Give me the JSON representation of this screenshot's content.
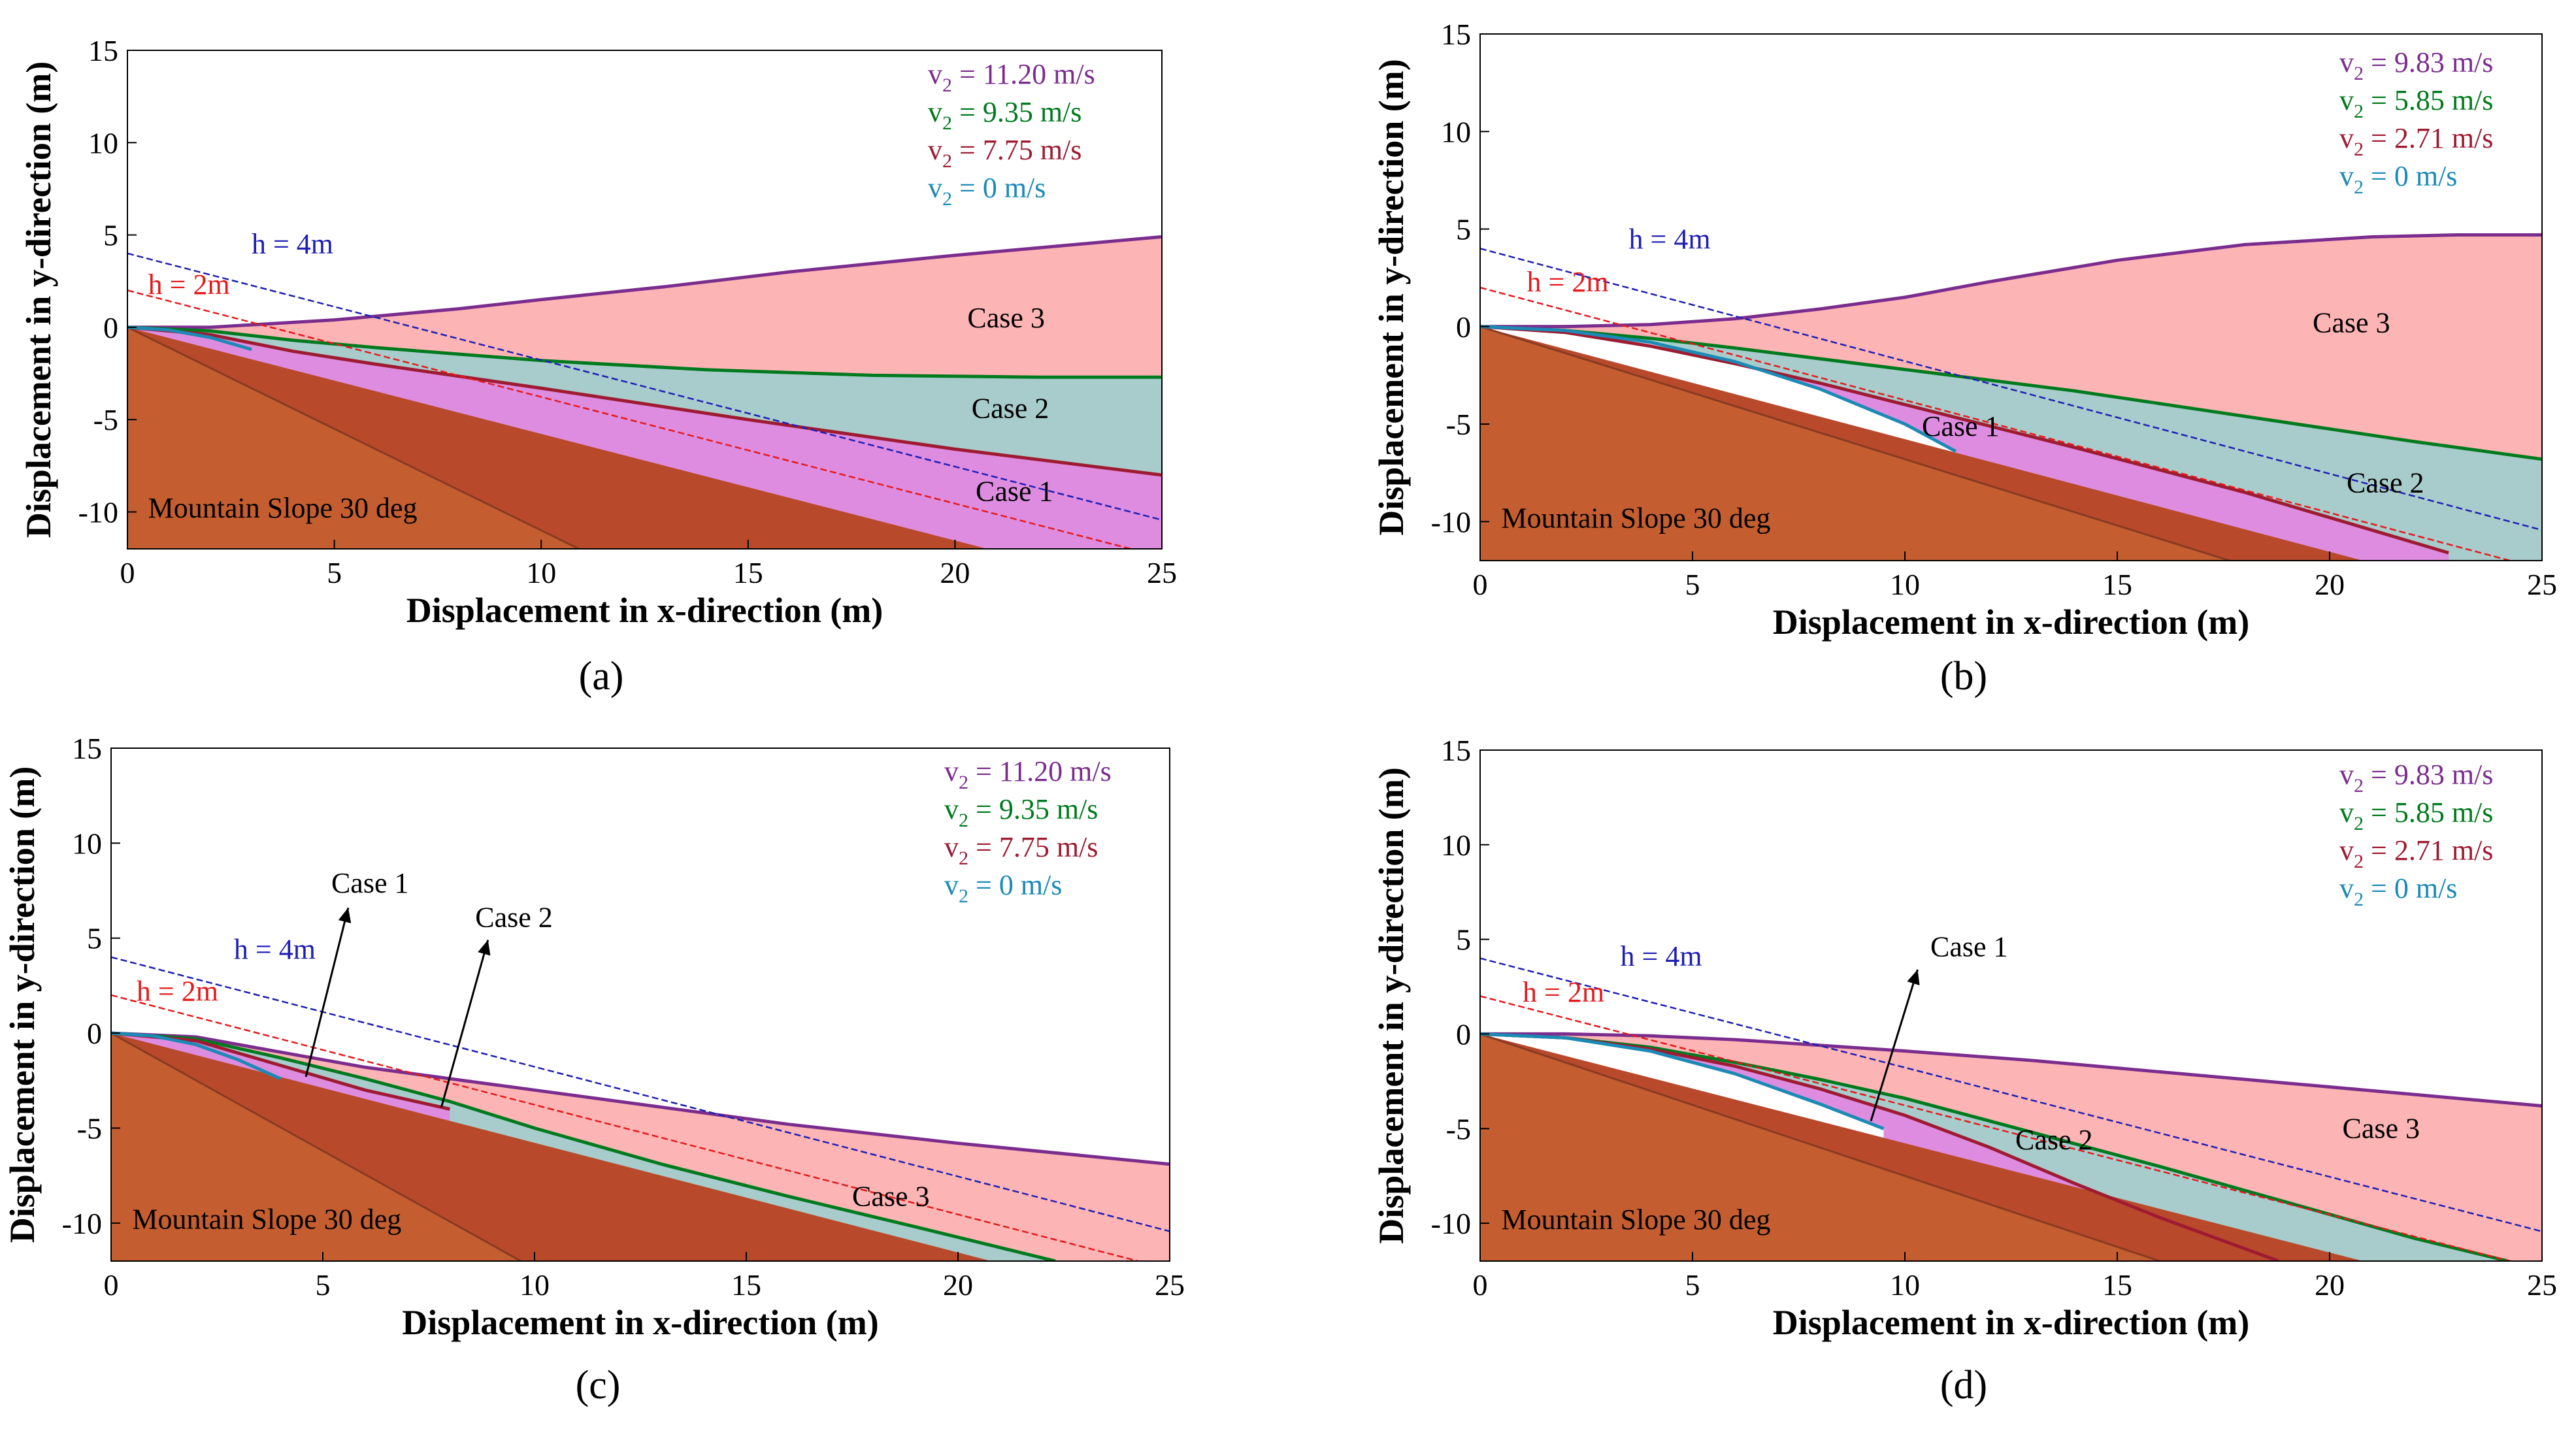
{
  "chart_data": [
    {
      "type": "area",
      "panel": "a",
      "panel_label": "a",
      "xlabel": "Displacement in x-direction (m)",
      "ylabel": "Displacement in y-direction (m)",
      "xlim": [
        0,
        25
      ],
      "ylim": [
        -12,
        15
      ],
      "xticks": [
        "0",
        "5",
        "10",
        "15",
        "20",
        "25"
      ],
      "yticks": [
        "15",
        "10",
        "5",
        "0",
        "-5",
        "-10"
      ],
      "slope_label": "Mountain Slope 30 deg",
      "slope_deg": 30,
      "steep_line_slope": -1.1,
      "h_lines": [
        {
          "label": "h = 4m",
          "intercept": 4,
          "color": "#1f1fb4"
        },
        {
          "label": "h = 2m",
          "intercept": 2,
          "color": "#e41a1c"
        }
      ],
      "legend": [
        {
          "prefix": "v",
          "sub": "2",
          "text": " = 11.20 m/s",
          "color": "#7b2d8e"
        },
        {
          "prefix": "v",
          "sub": "2",
          "text": " = 9.35 m/s",
          "color": "#007a1e"
        },
        {
          "prefix": "v",
          "sub": "2",
          "text": " = 7.75 m/s",
          "color": "#9e1b32"
        },
        {
          "prefix": "v",
          "sub": "2",
          "text": " = 0 m/s",
          "color": "#1b8ab5"
        }
      ],
      "series": [
        {
          "name": "v2 = 11.20 m/s",
          "color": "#7b2d8e",
          "fill": "#fdb4b4",
          "x": [
            0,
            2,
            5,
            8,
            10,
            13,
            16,
            20,
            25
          ],
          "y": [
            0,
            0,
            0.4,
            1.0,
            1.5,
            2.2,
            3.0,
            3.9,
            4.9
          ]
        },
        {
          "name": "v2 = 9.35 m/s",
          "color": "#007a1e",
          "fill": "#a8cccb",
          "x": [
            0,
            2,
            4,
            6,
            10,
            14,
            18,
            22,
            25
          ],
          "y": [
            0,
            -0.2,
            -0.7,
            -1.1,
            -1.8,
            -2.3,
            -2.6,
            -2.7,
            -2.7
          ]
        },
        {
          "name": "v2 = 7.75 m/s",
          "color": "#9e1b32",
          "fill": "#de8ce0",
          "x": [
            0,
            2,
            4,
            6,
            10,
            15,
            20,
            25
          ],
          "y": [
            0,
            -0.4,
            -1.3,
            -2.0,
            -3.3,
            -5.0,
            -6.6,
            -8.0
          ]
        },
        {
          "name": "v2 = 0 m/s",
          "color": "#1b8ab5",
          "fill": "#de8ce0",
          "x": [
            0,
            1,
            2,
            3
          ],
          "y": [
            0,
            -0.15,
            -0.55,
            -1.2
          ]
        }
      ],
      "annotations": [
        {
          "text": "h = 4m",
          "x": 3.0,
          "y": 4.0,
          "color": "#1f1fb4"
        },
        {
          "text": "h = 2m",
          "x": 0.5,
          "y": 1.8,
          "color": "#e41a1c"
        },
        {
          "text": "Case 3",
          "x": 20.3,
          "y": 0.0,
          "color": "#000000"
        },
        {
          "text": "Case 2",
          "x": 20.4,
          "y": -4.9,
          "color": "#000000"
        },
        {
          "text": "Case 1",
          "x": 20.5,
          "y": -9.4,
          "color": "#000000"
        }
      ]
    },
    {
      "type": "area",
      "panel": "b",
      "panel_label": "b",
      "xlabel": "Displacement in x-direction (m)",
      "ylabel": "Displacement in y-direction (m)",
      "xlim": [
        0,
        25
      ],
      "ylim": [
        -12,
        15
      ],
      "xticks": [
        "0",
        "5",
        "10",
        "15",
        "20",
        "25"
      ],
      "yticks": [
        "15",
        "10",
        "5",
        "0",
        "-5",
        "-10"
      ],
      "slope_label": "Mountain Slope 30 deg",
      "slope_deg": 30,
      "steep_line_slope": -0.68,
      "h_lines": [
        {
          "label": "h = 4m",
          "intercept": 4,
          "color": "#1f1fb4"
        },
        {
          "label": "h = 2m",
          "intercept": 2,
          "color": "#e41a1c"
        }
      ],
      "legend": [
        {
          "prefix": "v",
          "sub": "2",
          "text": " = 9.83 m/s",
          "color": "#7b2d8e"
        },
        {
          "prefix": "v",
          "sub": "2",
          "text": " = 5.85 m/s",
          "color": "#007a1e"
        },
        {
          "prefix": "v",
          "sub": "2",
          "text": " = 2.71 m/s",
          "color": "#9e1b32"
        },
        {
          "prefix": "v",
          "sub": "2",
          "text": " = 0 m/s",
          "color": "#1b8ab5"
        }
      ],
      "series": [
        {
          "name": "v2 = 9.83 m/s",
          "color": "#7b2d8e",
          "fill": "#fdb4b4",
          "x": [
            0,
            2,
            4,
            6,
            8,
            10,
            12,
            15,
            18,
            21,
            23,
            25
          ],
          "y": [
            0,
            0,
            0.1,
            0.4,
            0.9,
            1.5,
            2.3,
            3.4,
            4.2,
            4.6,
            4.7,
            4.7
          ]
        },
        {
          "name": "v2 = 5.85 m/s",
          "color": "#007a1e",
          "fill": "#a8cccb",
          "x": [
            0,
            2,
            4,
            6,
            10,
            14,
            18,
            22,
            25
          ],
          "y": [
            0,
            -0.2,
            -0.6,
            -1.1,
            -2.2,
            -3.3,
            -4.6,
            -5.9,
            -6.8
          ]
        },
        {
          "name": "v2 = 2.71 m/s",
          "color": "#9e1b32",
          "fill": "#de8ce0",
          "x": [
            0,
            2,
            4,
            6,
            8,
            10,
            14,
            18,
            22.8
          ],
          "y": [
            0,
            -0.3,
            -1.0,
            -1.9,
            -2.9,
            -4.0,
            -6.2,
            -8.5,
            -11.6
          ]
        },
        {
          "name": "v2 = 0 m/s",
          "color": "#1b8ab5",
          "fill": "#ffffff",
          "x": [
            0,
            2,
            4,
            6,
            8,
            10,
            11.2
          ],
          "y": [
            0,
            -0.2,
            -0.8,
            -1.8,
            -3.2,
            -5.0,
            -6.4
          ]
        }
      ],
      "annotations": [
        {
          "text": "h = 4m",
          "x": 3.5,
          "y": 4.0,
          "color": "#1f1fb4"
        },
        {
          "text": "h = 2m",
          "x": 1.1,
          "y": 1.8,
          "color": "#e41a1c"
        },
        {
          "text": "Case 3",
          "x": 19.6,
          "y": -0.3,
          "color": "#000000"
        },
        {
          "text": "Case 2",
          "x": 20.4,
          "y": -8.5,
          "color": "#000000"
        },
        {
          "text": "Case 1",
          "x": 10.4,
          "y": -5.6,
          "color": "#000000"
        }
      ]
    },
    {
      "type": "area",
      "panel": "c",
      "panel_label": "c",
      "xlabel": "Displacement in x-direction (m)",
      "ylabel": "Displacement in y-direction (m)",
      "xlim": [
        0,
        25
      ],
      "ylim": [
        -12,
        15
      ],
      "xticks": [
        "0",
        "5",
        "10",
        "15",
        "20",
        "25"
      ],
      "yticks": [
        "15",
        "10",
        "5",
        "0",
        "-5",
        "-10"
      ],
      "slope_label": "Mountain Slope 30 deg",
      "slope_deg": 30,
      "steep_line_slope": -1.24,
      "h_lines": [
        {
          "label": "h = 4m",
          "intercept": 4,
          "color": "#1f1fb4"
        },
        {
          "label": "h = 2m",
          "intercept": 2,
          "color": "#e41a1c"
        }
      ],
      "legend": [
        {
          "prefix": "v",
          "sub": "2",
          "text": " = 11.20 m/s",
          "color": "#7b2d8e"
        },
        {
          "prefix": "v",
          "sub": "2",
          "text": " = 9.35 m/s",
          "color": "#007a1e"
        },
        {
          "prefix": "v",
          "sub": "2",
          "text": " = 7.75 m/s",
          "color": "#9e1b32"
        },
        {
          "prefix": "v",
          "sub": "2",
          "text": " = 0 m/s",
          "color": "#1b8ab5"
        }
      ],
      "series": [
        {
          "name": "v2 = 11.20 m/s",
          "color": "#7b2d8e",
          "fill": "#fdb4b4",
          "x": [
            0,
            2,
            4,
            6,
            8,
            10,
            13,
            16,
            20,
            25
          ],
          "y": [
            0,
            -0.2,
            -1.0,
            -1.8,
            -2.4,
            -3.0,
            -3.9,
            -4.8,
            -5.8,
            -6.9
          ]
        },
        {
          "name": "v2 = 9.35 m/s",
          "color": "#007a1e",
          "fill": "#a8cccb",
          "x": [
            0,
            2,
            4,
            6,
            8,
            10,
            13,
            16,
            19,
            22.3
          ],
          "y": [
            0,
            -0.3,
            -1.3,
            -2.4,
            -3.6,
            -5.0,
            -6.9,
            -8.6,
            -10.2,
            -12
          ]
        },
        {
          "name": "v2 = 7.75 m/s",
          "color": "#9e1b32",
          "fill": "#de8ce0",
          "x": [
            0,
            2,
            4,
            6,
            8
          ],
          "y": [
            0,
            -0.4,
            -1.7,
            -3.0,
            -4.0
          ]
        },
        {
          "name": "v2 = 0 m/s",
          "color": "#1b8ab5",
          "fill": "#de8ce0",
          "x": [
            0,
            1,
            2,
            3,
            4
          ],
          "y": [
            0,
            -0.15,
            -0.6,
            -1.4,
            -2.4
          ]
        }
      ],
      "annotations": [
        {
          "text": "h = 4m",
          "x": 2.9,
          "y": 3.9,
          "color": "#1f1fb4"
        },
        {
          "text": "h = 2m",
          "x": 0.6,
          "y": 1.7,
          "color": "#e41a1c"
        },
        {
          "text": "Case 1",
          "x": 5.2,
          "y": 7.4,
          "color": "#000000"
        },
        {
          "text": "Case 2",
          "x": 8.6,
          "y": 5.6,
          "color": "#000000"
        },
        {
          "text": "Case 3",
          "x": 17.5,
          "y": -9.1,
          "color": "#000000"
        }
      ],
      "arrows": [
        {
          "from": [
            4.6,
            -2.3
          ],
          "to": [
            5.6,
            6.6
          ]
        },
        {
          "from": [
            7.8,
            -3.9
          ],
          "to": [
            8.9,
            4.9
          ]
        }
      ]
    },
    {
      "type": "area",
      "panel": "d",
      "panel_label": "d",
      "xlabel": "Displacement in x-direction (m)",
      "ylabel": "Displacement in y-direction (m)",
      "xlim": [
        0,
        25
      ],
      "ylim": [
        -12,
        15
      ],
      "xticks": [
        "0",
        "5",
        "10",
        "15",
        "20",
        "25"
      ],
      "yticks": [
        "15",
        "10",
        "5",
        "0",
        "-5",
        "-10"
      ],
      "slope_label": "Mountain Slope 30 deg",
      "slope_deg": 30,
      "steep_line_slope": -0.75,
      "h_lines": [
        {
          "label": "h = 4m",
          "intercept": 4,
          "color": "#1f1fb4"
        },
        {
          "label": "h = 2m",
          "intercept": 2,
          "color": "#e41a1c"
        }
      ],
      "legend": [
        {
          "prefix": "v",
          "sub": "2",
          "text": " = 9.83 m/s",
          "color": "#7b2d8e"
        },
        {
          "prefix": "v",
          "sub": "2",
          "text": " = 5.85 m/s",
          "color": "#007a1e"
        },
        {
          "prefix": "v",
          "sub": "2",
          "text": " = 2.71 m/s",
          "color": "#9e1b32"
        },
        {
          "prefix": "v",
          "sub": "2",
          "text": " = 0 m/s",
          "color": "#1b8ab5"
        }
      ],
      "series": [
        {
          "name": "v2 = 9.83 m/s",
          "color": "#7b2d8e",
          "fill": "#fdb4b4",
          "x": [
            0,
            2,
            4,
            6,
            8,
            10,
            13,
            16,
            19,
            22,
            25
          ],
          "y": [
            0,
            0,
            -0.1,
            -0.3,
            -0.6,
            -0.9,
            -1.4,
            -2.0,
            -2.6,
            -3.2,
            -3.8
          ]
        },
        {
          "name": "v2 = 5.85 m/s",
          "color": "#007a1e",
          "fill": "#a8cccb",
          "x": [
            0,
            2,
            4,
            6,
            8,
            10,
            13,
            16,
            19,
            22,
            24.2
          ],
          "y": [
            0,
            -0.2,
            -0.7,
            -1.5,
            -2.4,
            -3.4,
            -5.2,
            -7.0,
            -8.9,
            -10.8,
            -12
          ]
        },
        {
          "name": "v2 = 2.71 m/s",
          "color": "#9e1b32",
          "fill": "#de8ce0",
          "x": [
            0,
            2,
            4,
            6,
            8,
            10,
            12,
            14,
            16,
            18.8
          ],
          "y": [
            0,
            -0.2,
            -0.8,
            -1.7,
            -2.9,
            -4.3,
            -6.0,
            -7.9,
            -9.7,
            -12
          ]
        },
        {
          "name": "v2 = 0 m/s",
          "color": "#1b8ab5",
          "fill": "#ffffff",
          "x": [
            0,
            2,
            4,
            6,
            8,
            9.5
          ],
          "y": [
            0,
            -0.2,
            -0.9,
            -2.1,
            -3.7,
            -5.0
          ]
        }
      ],
      "annotations": [
        {
          "text": "h = 4m",
          "x": 3.3,
          "y": 3.6,
          "color": "#1f1fb4"
        },
        {
          "text": "h = 2m",
          "x": 1.0,
          "y": 1.7,
          "color": "#e41a1c"
        },
        {
          "text": "Case 1",
          "x": 10.6,
          "y": 4.1,
          "color": "#000000"
        },
        {
          "text": "Case 2",
          "x": 12.6,
          "y": -6.1,
          "color": "#000000"
        },
        {
          "text": "Case 3",
          "x": 20.3,
          "y": -5.5,
          "color": "#000000"
        }
      ],
      "arrows": [
        {
          "from": [
            9.2,
            -4.6
          ],
          "to": [
            10.3,
            3.4
          ]
        }
      ]
    }
  ]
}
